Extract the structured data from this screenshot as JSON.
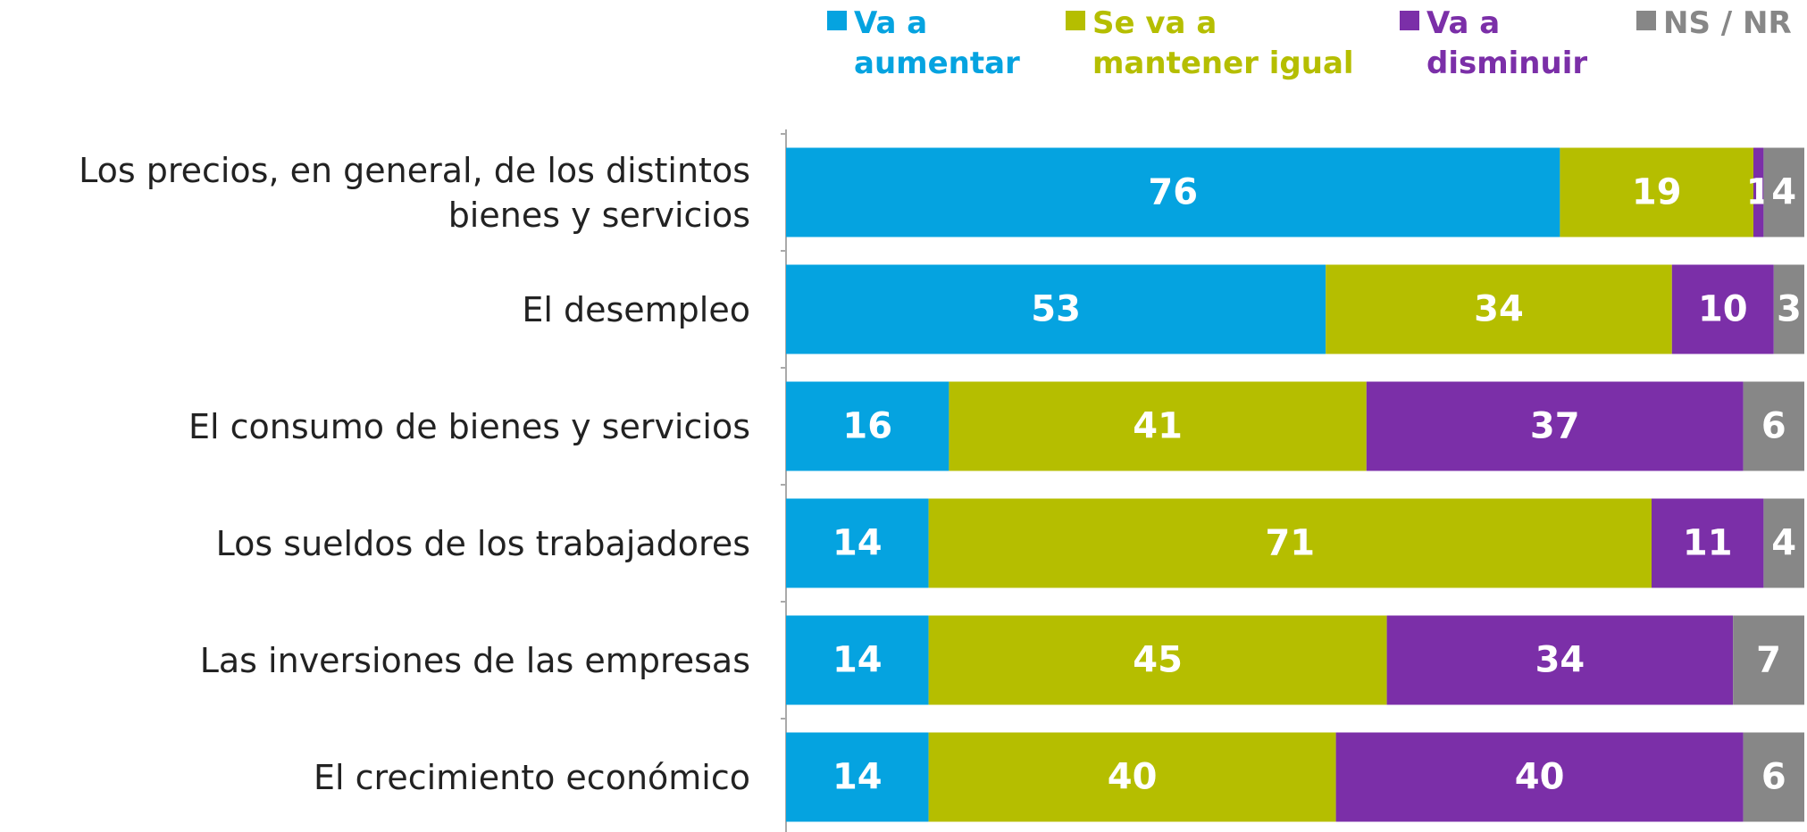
{
  "chart_data": {
    "type": "stacked_barh",
    "categories": [
      "Los precios, en general, de los distintos bienes y servicios",
      "El desempleo",
      "El consumo de bienes y servicios",
      "Los sueldos de los trabajadores",
      "Las inversiones de las empresas",
      "El crecimiento económico"
    ],
    "series": [
      {
        "name": "Va a aumentar",
        "color": "#05a3e0",
        "values": [
          76,
          53,
          16,
          14,
          14,
          14
        ]
      },
      {
        "name": "Se va a mantener igual",
        "color": "#b5be00",
        "values": [
          19,
          34,
          41,
          71,
          45,
          40
        ]
      },
      {
        "name": "Va a disminuir",
        "color": "#7b2fa8",
        "values": [
          1,
          10,
          37,
          11,
          34,
          40
        ]
      },
      {
        "name": "NS / NR",
        "color": "#878787",
        "values": [
          4,
          3,
          6,
          4,
          7,
          6
        ]
      }
    ],
    "xlim": [
      0,
      100
    ]
  }
}
